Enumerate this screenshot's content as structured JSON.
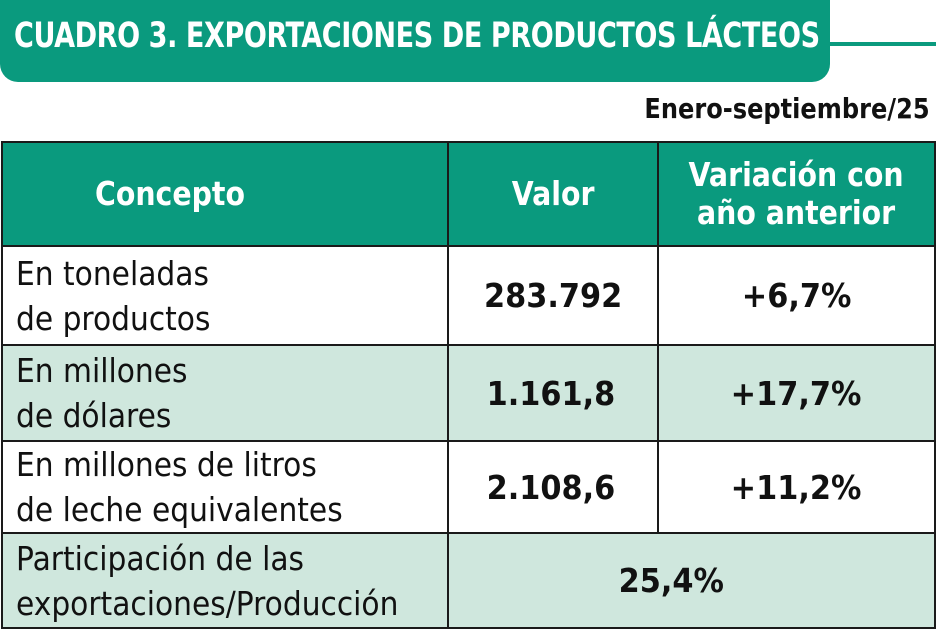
{
  "title": "CUADRO 3. EXPORTACIONES DE PRODUCTOS LÁCTEOS",
  "subtitle": "Enero-septiembre/25",
  "colors": {
    "header": "#0a9a7e",
    "row_alt": "#cfe7dd"
  },
  "table": {
    "headers": {
      "concepto": "Concepto",
      "valor": "Valor",
      "variacion_l1": "Variación con",
      "variacion_l2": "año anterior"
    },
    "rows": [
      {
        "concepto_l1": "En toneladas",
        "concepto_l2": "de productos",
        "valor": "283.792",
        "variacion": "+6,7%"
      },
      {
        "concepto_l1": "En millones",
        "concepto_l2": "de dólares",
        "valor": "1.161,8",
        "variacion": "+17,7%"
      },
      {
        "concepto_l1": "En millones de litros",
        "concepto_l2": "de leche equivalentes",
        "valor": "2.108,6",
        "variacion": "+11,2%"
      }
    ],
    "participacion": {
      "concepto_l1": "Participación de las",
      "concepto_l2": "exportaciones/Producción",
      "valor": "25,4%"
    }
  }
}
